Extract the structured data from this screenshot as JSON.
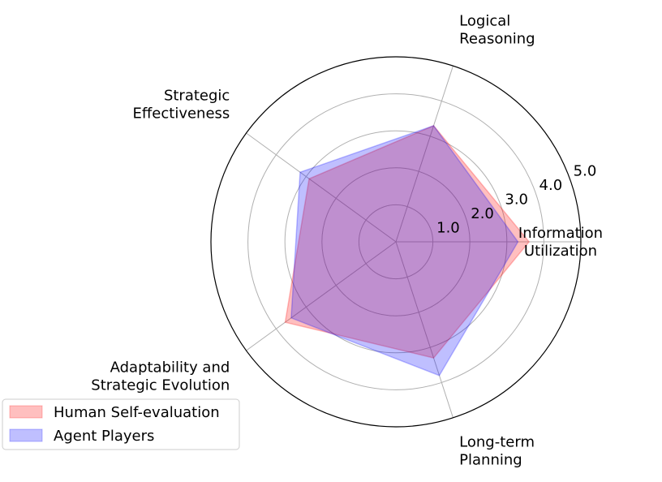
{
  "chart_data": {
    "type": "radar",
    "categories": [
      [
        "Information",
        "Utilization"
      ],
      [
        "Logical",
        "Reasoning"
      ],
      [
        "Strategic",
        "Effectiveness"
      ],
      [
        "Adaptability and",
        "Strategic Evolution"
      ],
      [
        "Long-term",
        "Planning"
      ]
    ],
    "series": [
      {
        "name": "Human Self-evaluation",
        "values": [
          3.6,
          3.3,
          2.9,
          3.7,
          3.3
        ],
        "color": "#ff0000",
        "opacity": 0.25
      },
      {
        "name": "Agent Players",
        "values": [
          3.3,
          3.3,
          3.2,
          3.5,
          3.8
        ],
        "color": "#0000ff",
        "opacity": 0.25
      }
    ],
    "rlim": [
      0,
      5
    ],
    "rticks": [
      1.0,
      2.0,
      3.0,
      4.0,
      5.0
    ],
    "rtick_labels": [
      "1.0",
      "2.0",
      "3.0",
      "4.0",
      "5.0"
    ],
    "grid": true,
    "legend_position": "lower-left"
  }
}
